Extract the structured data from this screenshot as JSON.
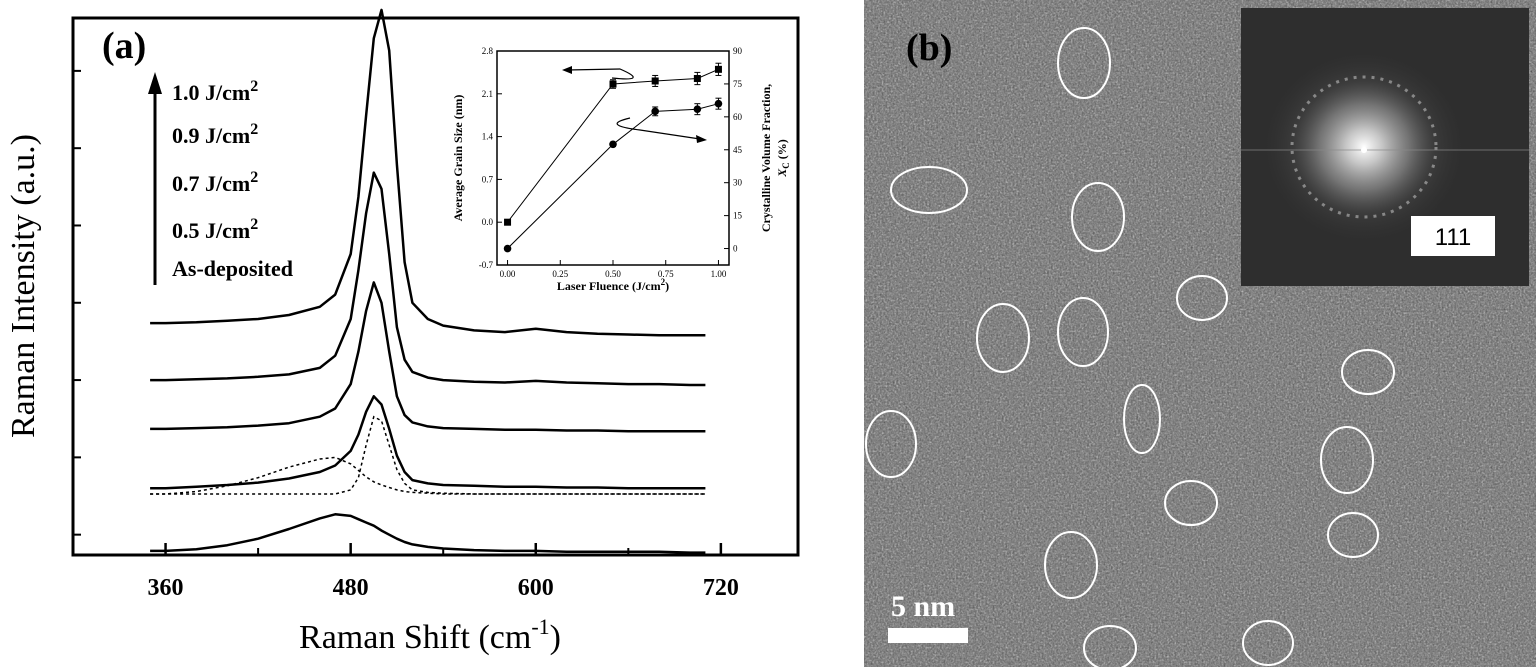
{
  "panel_a": {
    "label": "(a)",
    "arrow_labels": [
      {
        "text": "1.0 J/cm",
        "sup": "2"
      },
      {
        "text": "0.9 J/cm",
        "sup": "2"
      },
      {
        "text": "0.7 J/cm",
        "sup": "2"
      },
      {
        "text": "0.5 J/cm",
        "sup": "2"
      },
      {
        "text": "As-deposited",
        "sup": ""
      }
    ]
  },
  "panel_b": {
    "label": "(b)",
    "scale_bar": "5 nm",
    "fft_label": "111"
  },
  "chart_data": [
    {
      "type": "line",
      "xlabel": "Raman Shift (cm",
      "xlabel_sup": "-1",
      "xlabel_tail": ")",
      "ylabel": "Raman Intensity (a.u.)",
      "xlim": [
        300,
        770
      ],
      "xticks": [
        360,
        480,
        600,
        720
      ],
      "ylim": [
        0,
        6.6
      ],
      "x": [
        350,
        360,
        380,
        400,
        420,
        440,
        460,
        470,
        480,
        485,
        490,
        495,
        500,
        505,
        510,
        515,
        520,
        530,
        540,
        560,
        580,
        600,
        620,
        640,
        660,
        680,
        700,
        710
      ],
      "series": [
        {
          "name": "As-deposited",
          "values": [
            0.05,
            0.05,
            0.07,
            0.12,
            0.2,
            0.32,
            0.45,
            0.5,
            0.48,
            0.44,
            0.4,
            0.36,
            0.3,
            0.25,
            0.2,
            0.16,
            0.13,
            0.1,
            0.08,
            0.06,
            0.05,
            0.05,
            0.04,
            0.04,
            0.04,
            0.04,
            0.03,
            0.03
          ]
        },
        {
          "name": "0.5 J/cm2",
          "values": [
            0.82,
            0.82,
            0.84,
            0.86,
            0.89,
            0.94,
            1.02,
            1.1,
            1.28,
            1.48,
            1.76,
            1.95,
            1.85,
            1.55,
            1.22,
            1.02,
            0.92,
            0.88,
            0.86,
            0.85,
            0.84,
            0.84,
            0.83,
            0.83,
            0.82,
            0.82,
            0.82,
            0.82
          ]
        },
        {
          "name": "0.7 J/cm2",
          "values": [
            1.55,
            1.55,
            1.56,
            1.57,
            1.59,
            1.62,
            1.7,
            1.8,
            2.1,
            2.5,
            3.0,
            3.35,
            3.1,
            2.5,
            1.95,
            1.72,
            1.63,
            1.58,
            1.56,
            1.55,
            1.54,
            1.54,
            1.53,
            1.53,
            1.52,
            1.52,
            1.52,
            1.52
          ]
        },
        {
          "name": "0.9 J/cm2",
          "values": [
            2.15,
            2.15,
            2.16,
            2.17,
            2.19,
            2.22,
            2.3,
            2.45,
            2.9,
            3.5,
            4.2,
            4.7,
            4.5,
            3.7,
            2.8,
            2.4,
            2.25,
            2.18,
            2.15,
            2.13,
            2.12,
            2.14,
            2.12,
            2.11,
            2.1,
            2.1,
            2.09,
            2.09
          ]
        },
        {
          "name": "1.0 J/cm2",
          "values": [
            2.85,
            2.85,
            2.86,
            2.88,
            2.9,
            2.95,
            3.05,
            3.2,
            3.7,
            4.4,
            5.4,
            6.35,
            6.7,
            6.2,
            4.8,
            3.6,
            3.1,
            2.9,
            2.82,
            2.76,
            2.74,
            2.78,
            2.74,
            2.72,
            2.71,
            2.7,
            2.7,
            2.7
          ]
        }
      ],
      "dotted_components": [
        {
          "values": [
            0.75,
            0.75,
            0.78,
            0.85,
            0.95,
            1.08,
            1.18,
            1.2,
            1.12,
            1.04,
            0.96,
            0.9,
            0.86,
            0.83,
            0.8,
            0.78,
            0.77,
            0.76,
            0.75,
            0.75,
            0.75,
            0.75,
            0.75,
            0.75,
            0.75,
            0.75,
            0.75,
            0.75
          ]
        },
        {
          "values": [
            0.75,
            0.75,
            0.75,
            0.75,
            0.75,
            0.75,
            0.75,
            0.75,
            0.8,
            0.95,
            1.35,
            1.7,
            1.65,
            1.35,
            1.05,
            0.88,
            0.8,
            0.77,
            0.76,
            0.75,
            0.75,
            0.75,
            0.75,
            0.75,
            0.75,
            0.75,
            0.75,
            0.75
          ]
        }
      ]
    },
    {
      "type": "line",
      "xlabel": "Laser Fluence (J/cm",
      "xlabel_sup": "2",
      "xlabel_tail": ")",
      "ylabel": "Average Grain Size (nm)",
      "y2label": "Crystalline Volume Fraction,",
      "y2label_line2": "X",
      "y2label_line2_sub": "C",
      "y2label_line2_tail": " (%)",
      "xlim": [
        -0.05,
        1.05
      ],
      "xticks": [
        "0.00",
        "0.25",
        "0.50",
        "0.75",
        "1.00"
      ],
      "ylim": [
        -0.7,
        2.8
      ],
      "yticks": [
        "-0.7",
        "0.0",
        "0.7",
        "1.4",
        "2.1",
        "2.8"
      ],
      "y2lim": [
        -7.5,
        90
      ],
      "y2ticks": [
        "0",
        "15",
        "30",
        "45",
        "60",
        "75",
        "90"
      ],
      "x": [
        0.0,
        0.5,
        0.7,
        0.9,
        1.0
      ],
      "series": [
        {
          "values": [
            0.0,
            2.26,
            2.31,
            2.35,
            2.5
          ],
          "axis": "left",
          "marker": "square",
          "err": [
            0.03,
            0.07,
            0.09,
            0.1,
            0.1
          ]
        },
        {
          "values": [
            0.0,
            47.5,
            62.5,
            63.5,
            66.0
          ],
          "axis": "right",
          "marker": "circle",
          "err": [
            0.8,
            1.0,
            2.0,
            2.5,
            2.5
          ]
        }
      ]
    }
  ]
}
